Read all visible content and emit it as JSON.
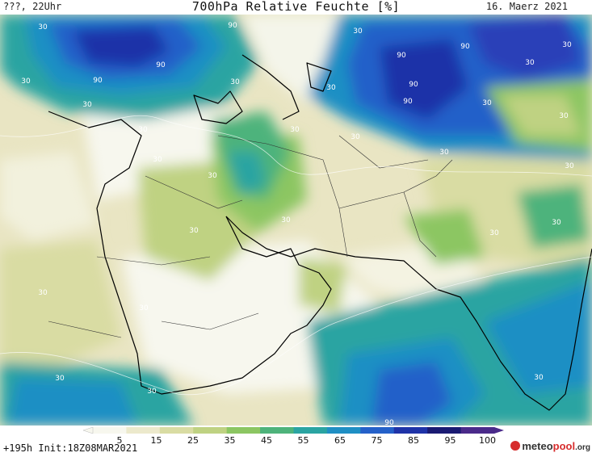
{
  "header": {
    "left_label": "???, 22Uhr",
    "title": "700hPa Relative Feuchte [%]",
    "date": "16. Maerz 2021"
  },
  "map": {
    "contour_labels": [
      "30",
      "90"
    ]
  },
  "colorbar": {
    "tick_labels": [
      "5",
      "15",
      "25",
      "35",
      "45",
      "55",
      "65",
      "75",
      "85",
      "95",
      "100"
    ],
    "colors": [
      "#f7f7ee",
      "#ece9cc",
      "#d9dca3",
      "#bfd282",
      "#8cc662",
      "#4eb37b",
      "#2aa4a2",
      "#1f8fc4",
      "#2460c9",
      "#1f33a8",
      "#1a1a72",
      "#4a2a8a"
    ]
  },
  "footer": {
    "run_info": "+195h Init:18Z08MAR2021",
    "logo_text": "meteo",
    "logo_accent": "pool",
    "logo_suffix": ".org"
  }
}
